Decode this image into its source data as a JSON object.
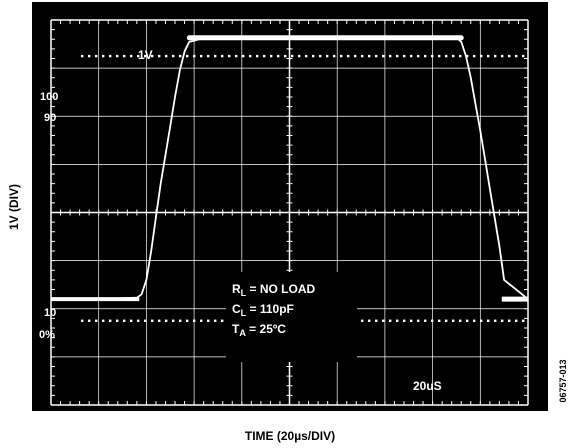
{
  "chart_data": {
    "type": "line",
    "title": "",
    "xlabel": "TIME (20µs/DIV)",
    "ylabel": "1V (DIV)",
    "divisions": {
      "x": 10,
      "y": 8
    },
    "xlim": [
      0,
      200
    ],
    "ylim": [
      0,
      8
    ],
    "grid": true,
    "scope_labels": {
      "channel_scale": "1V",
      "time_scale": "20uS",
      "marker_100": "100",
      "marker_90": "90",
      "marker_10": "10",
      "marker_0": "0%"
    },
    "annotations": [
      {
        "main": "R",
        "sub": "L",
        "rest": " = NO LOAD"
      },
      {
        "main": "C",
        "sub": "L",
        "rest": " = 110pF"
      },
      {
        "main": "T",
        "sub": "A",
        "rest": " = 25ºC"
      }
    ],
    "figure_id": "06757-013",
    "series": [
      {
        "x": [
          0,
          20,
          36,
          38,
          40,
          42,
          44,
          46,
          48,
          50,
          52,
          54,
          56,
          58,
          60,
          62,
          64,
          66,
          68,
          70,
          80,
          100,
          120,
          140,
          160,
          170,
          172,
          174,
          176,
          178,
          180,
          182,
          184,
          186,
          188,
          190,
          200
        ],
        "y": [
          2.2,
          2.2,
          2.23,
          2.3,
          2.6,
          3.2,
          3.9,
          4.6,
          5.2,
          5.8,
          6.4,
          6.95,
          7.35,
          7.55,
          7.57,
          7.6,
          7.62,
          7.63,
          7.63,
          7.63,
          7.63,
          7.63,
          7.63,
          7.63,
          7.63,
          7.63,
          7.55,
          7.25,
          6.8,
          6.25,
          5.7,
          5.1,
          4.5,
          3.9,
          3.3,
          2.6,
          2.2
        ]
      }
    ]
  }
}
